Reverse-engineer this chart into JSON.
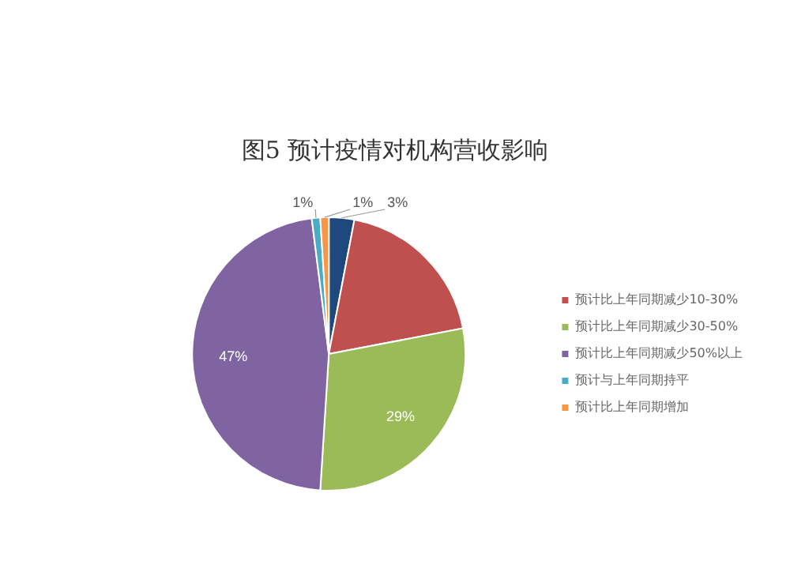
{
  "chart_data": {
    "type": "pie",
    "title": "图5 预计疫情对机构营收影响",
    "categories": [
      null,
      "预计比上年同期减少10-30%",
      "预计比上年同期减少30-50%",
      "预计比上年同期减少50%以上",
      "预计与上年同期持平",
      "预计比上年同期增加"
    ],
    "values": [
      3,
      19,
      29,
      47,
      1,
      1
    ],
    "colors": [
      "#1f497d",
      "#c0504d",
      "#9bbb59",
      "#8064a2",
      "#4bacc6",
      "#f79646"
    ],
    "value_labels": [
      "3%",
      null,
      "29%",
      "47%",
      "1%",
      "1%"
    ],
    "legend": "right"
  }
}
